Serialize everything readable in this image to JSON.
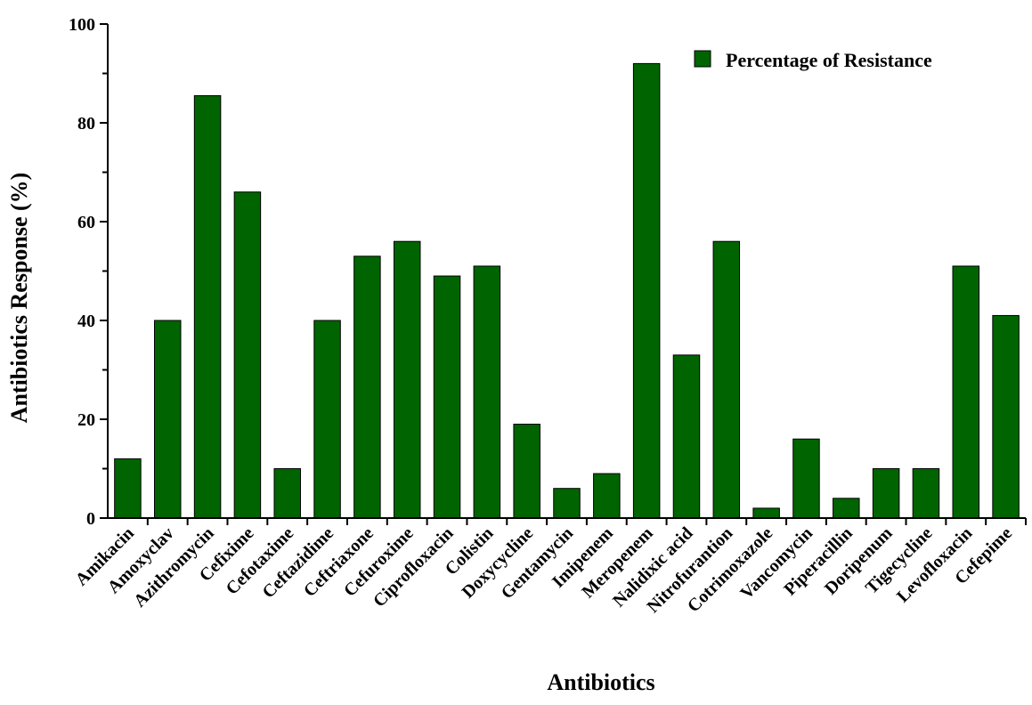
{
  "chart_data": {
    "type": "bar",
    "title": "",
    "xlabel": "Antibiotics",
    "ylabel": "Antibiotics Response (%)",
    "ylim": [
      0,
      100
    ],
    "yticks": [
      "0",
      "20",
      "40",
      "60",
      "80",
      "100"
    ],
    "grid": false,
    "legend_position": "top-right",
    "categories": [
      "Amikacin",
      "Amoxyclav",
      "Azithromycin",
      "Cefixime",
      "Cefotaxime",
      "Ceftazidime",
      "Ceftriaxone",
      "Cefuroxime",
      "Ciprofloxacin",
      "Colistin",
      "Doxycycline",
      "Gentamycin",
      "Imipenem",
      "Meropenem",
      "Nalidixic acid",
      "Nitrofurantion",
      "Cotrimoxazole",
      "Vancomycin",
      "Piperacillin",
      "Doripenum",
      "Tigecycline",
      "Levofloxacin",
      "Cefepime"
    ],
    "series": [
      {
        "name": "Percentage of Resistance",
        "color": "#006400",
        "values": [
          12,
          40,
          85.5,
          66,
          10,
          40,
          53,
          56,
          49,
          51,
          19,
          6,
          9,
          92,
          33,
          56,
          2,
          16,
          4,
          10,
          10,
          51,
          41
        ]
      }
    ]
  }
}
